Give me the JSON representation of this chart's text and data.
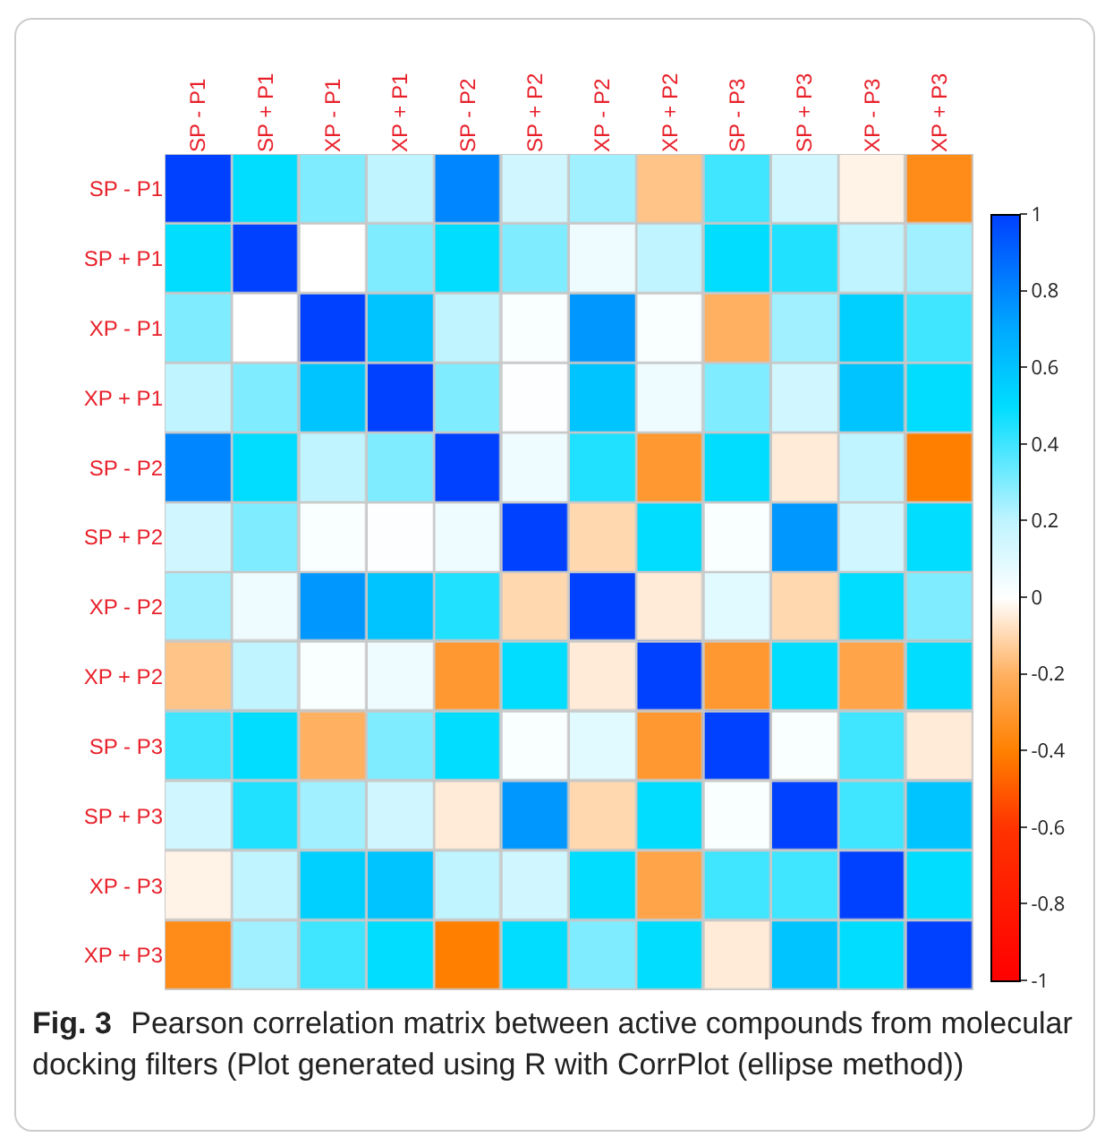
{
  "chart_data": {
    "type": "heatmap",
    "categories": [
      "SP - P1",
      "SP + P1",
      "XP - P1",
      "XP + P1",
      "SP - P2",
      "SP + P2",
      "XP - P2",
      "XP + P2",
      "SP - P3",
      "SP + P3",
      "XP - P3",
      "XP + P3"
    ],
    "y_categories": [
      "SP - P1",
      "SP + P1",
      "XP - P1",
      "XP + P1",
      "SP - P2",
      "SP + P2",
      "XP - P2",
      "XP + P2",
      "SP - P3",
      "SP + P3",
      "XP - P3",
      "XP + P3"
    ],
    "cells": [
      [
        1,
        0.5,
        0.3,
        0.2,
        0.8,
        0.15,
        0.25,
        -0.15,
        0.4,
        0.15,
        -0.03,
        -0.35
      ],
      [
        0.5,
        1,
        0,
        0.3,
        0.5,
        0.3,
        0.05,
        0.2,
        0.5,
        0.45,
        0.2,
        0.25
      ],
      [
        0.3,
        0,
        1,
        0.6,
        0.2,
        0.02,
        0.75,
        0.02,
        -0.2,
        0.25,
        0.55,
        0.4
      ],
      [
        0.2,
        0.3,
        0.6,
        1,
        0.3,
        0.01,
        0.6,
        0.05,
        0.3,
        0.15,
        0.6,
        0.5
      ],
      [
        0.8,
        0.5,
        0.2,
        0.3,
        1,
        0.05,
        0.45,
        -0.3,
        0.5,
        -0.05,
        0.2,
        -0.4
      ],
      [
        0.15,
        0.3,
        0.02,
        0.01,
        0.05,
        1,
        -0.1,
        0.5,
        0.02,
        0.75,
        0.15,
        0.5
      ],
      [
        0.25,
        0.05,
        0.75,
        0.6,
        0.45,
        -0.1,
        1,
        -0.05,
        0.1,
        -0.1,
        0.5,
        0.3
      ],
      [
        -0.15,
        0.2,
        0.02,
        0.05,
        -0.3,
        0.5,
        -0.05,
        1,
        -0.3,
        0.5,
        -0.25,
        0.5
      ],
      [
        0.4,
        0.5,
        -0.2,
        0.3,
        0.5,
        0.02,
        0.1,
        -0.3,
        1,
        0.02,
        0.4,
        -0.05
      ],
      [
        0.15,
        0.45,
        0.25,
        0.15,
        -0.05,
        0.75,
        -0.1,
        0.5,
        0.02,
        1,
        0.4,
        0.6
      ],
      [
        -0.03,
        0.2,
        0.55,
        0.6,
        0.2,
        0.15,
        0.5,
        -0.25,
        0.4,
        0.4,
        1,
        0.5
      ],
      [
        -0.35,
        0.25,
        0.4,
        0.5,
        -0.4,
        0.5,
        0.3,
        0.5,
        -0.05,
        0.6,
        0.5,
        1
      ]
    ],
    "clim": [
      -1,
      1
    ],
    "cticks": [
      -1,
      -0.8,
      -0.6,
      -0.4,
      -0.2,
      0,
      0.2,
      0.4,
      0.6,
      0.8,
      1
    ],
    "annotations": [
      "Fig. 3",
      "Pearson correlation matrix between active compounds from molecular docking filters (Plot generated using R with CorrPlot (ellipse method))"
    ]
  }
}
